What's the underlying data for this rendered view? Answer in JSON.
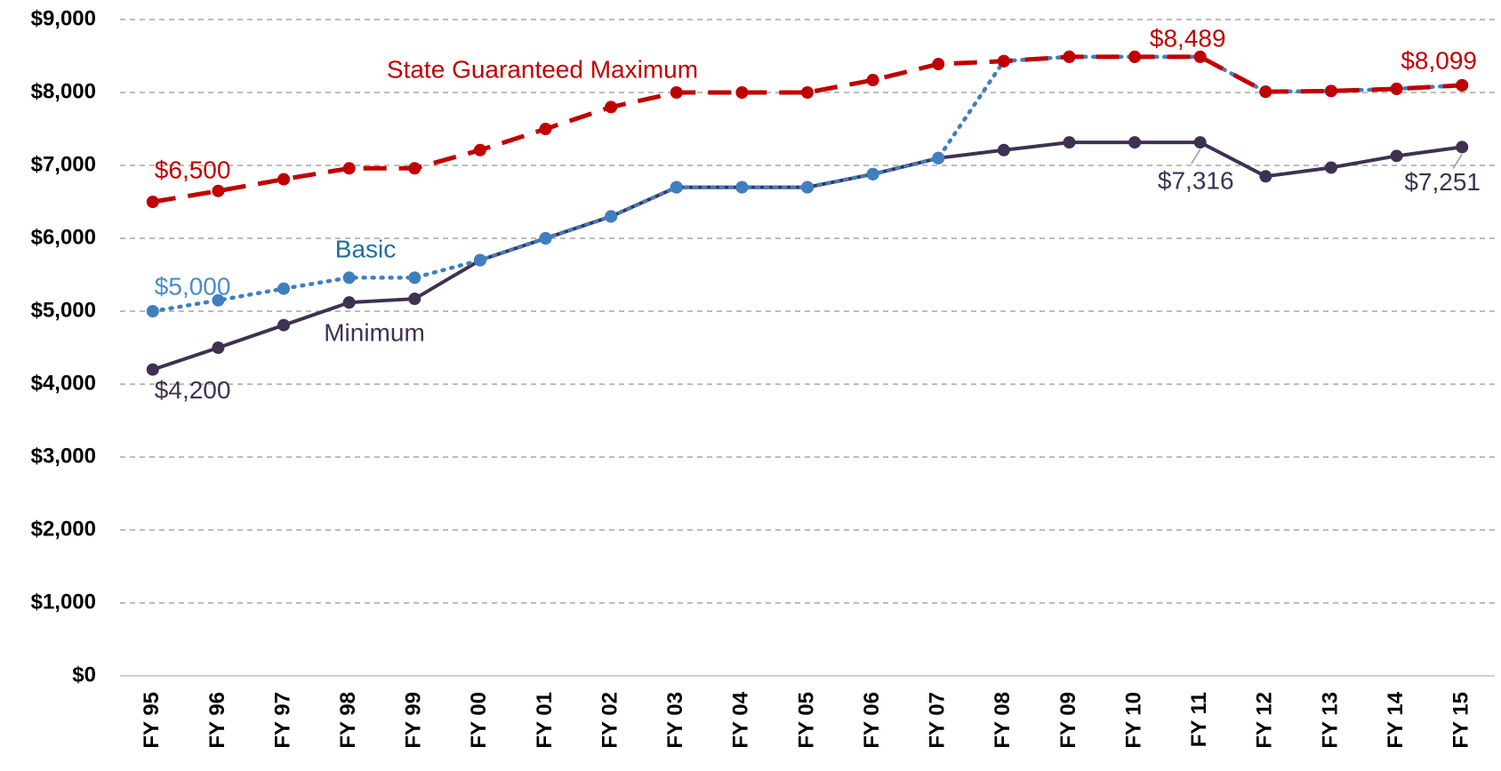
{
  "chart_data": {
    "type": "line",
    "categories": [
      "FY 95",
      "FY 96",
      "FY 97",
      "FY 98",
      "FY 99",
      "FY 00",
      "FY 01",
      "FY 02",
      "FY 03",
      "FY 04",
      "FY 05",
      "FY 06",
      "FY 07",
      "FY 08",
      "FY 09",
      "FY 10",
      "FY 11",
      "FY 12",
      "FY 13",
      "FY 14",
      "FY 15"
    ],
    "series": [
      {
        "name": "Minimum",
        "color": "#3f3152",
        "dash": "solid",
        "values": [
          4200,
          4500,
          4810,
          5120,
          5170,
          5700,
          6000,
          6300,
          6700,
          6700,
          6700,
          6880,
          7100,
          7210,
          7316,
          7316,
          7316,
          6850,
          6970,
          7130,
          7251
        ],
        "value_labels": [
          "$4,200",
          null,
          null,
          null,
          null,
          null,
          null,
          null,
          null,
          null,
          null,
          null,
          null,
          null,
          null,
          null,
          "$7,316",
          null,
          null,
          null,
          "$7,251"
        ]
      },
      {
        "name": "Basic",
        "color": "#3f7fbf",
        "dash": "dotted",
        "values": [
          5000,
          5150,
          5310,
          5460,
          5460,
          5700,
          6000,
          6300,
          6700,
          6700,
          6700,
          6880,
          7100,
          8430,
          8489,
          8489,
          8489,
          8010,
          8020,
          8050,
          8099
        ],
        "value_labels": [
          "$5,000",
          null,
          null,
          null,
          null,
          null,
          null,
          null,
          null,
          null,
          null,
          null,
          null,
          null,
          null,
          null,
          null,
          null,
          null,
          null,
          null
        ]
      },
      {
        "name": "State Guaranteed Maximum",
        "color": "#c00000",
        "dash": "dashed",
        "values": [
          6500,
          6650,
          6810,
          6960,
          6960,
          7210,
          7500,
          7800,
          8000,
          8000,
          8000,
          8170,
          8390,
          8430,
          8489,
          8489,
          8489,
          8010,
          8020,
          8050,
          8099
        ],
        "value_labels": [
          "$6,500",
          null,
          null,
          null,
          null,
          null,
          null,
          null,
          null,
          null,
          null,
          null,
          null,
          null,
          null,
          null,
          "$8,489",
          null,
          null,
          null,
          "$8,099"
        ]
      }
    ],
    "ylim": [
      0,
      9000
    ],
    "yticks": [
      {
        "value": 0,
        "label": "$0"
      },
      {
        "value": 1000,
        "label": "$1,000"
      },
      {
        "value": 2000,
        "label": "$2,000"
      },
      {
        "value": 3000,
        "label": "$3,000"
      },
      {
        "value": 4000,
        "label": "$4,000"
      },
      {
        "value": 5000,
        "label": "$5,000"
      },
      {
        "value": 6000,
        "label": "$6,000"
      },
      {
        "value": 7000,
        "label": "$7,000"
      },
      {
        "value": 8000,
        "label": "$8,000"
      },
      {
        "value": 9000,
        "label": "$9,000"
      }
    ],
    "grid": true
  }
}
